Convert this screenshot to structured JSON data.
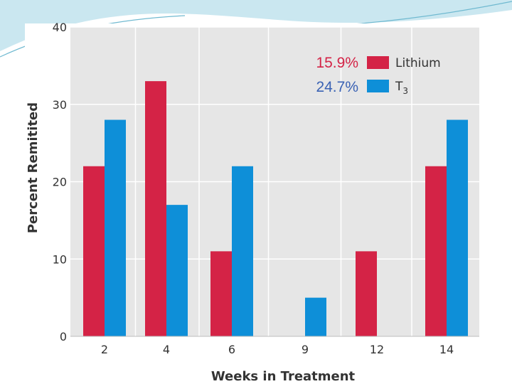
{
  "chart_data": {
    "type": "bar",
    "title": "",
    "xlabel": "Weeks in Treatment",
    "ylabel": "Percent Remitited",
    "categories": [
      "2",
      "4",
      "6",
      "9",
      "12",
      "14"
    ],
    "series": [
      {
        "name": "Lithium",
        "percent_label": "15.9%",
        "color": "#d42346",
        "values": [
          22,
          33,
          11,
          0,
          11,
          22
        ]
      },
      {
        "name": "T3",
        "subscript": "3",
        "percent_label": "24.7%",
        "color": "#0e8fd8",
        "values": [
          28,
          17,
          22,
          5,
          0,
          28
        ]
      }
    ],
    "ylim": [
      0,
      40
    ],
    "yticks": [
      0,
      10,
      20,
      30,
      40
    ],
    "grid": true,
    "legend_position": "top-right"
  },
  "colors": {
    "plot_background": "#e6e6e6",
    "gridline": "#ffffff",
    "lithium_label": "#d42346",
    "t3_label": "#3a62b4",
    "slide_swoosh": "#9fd3e3"
  }
}
